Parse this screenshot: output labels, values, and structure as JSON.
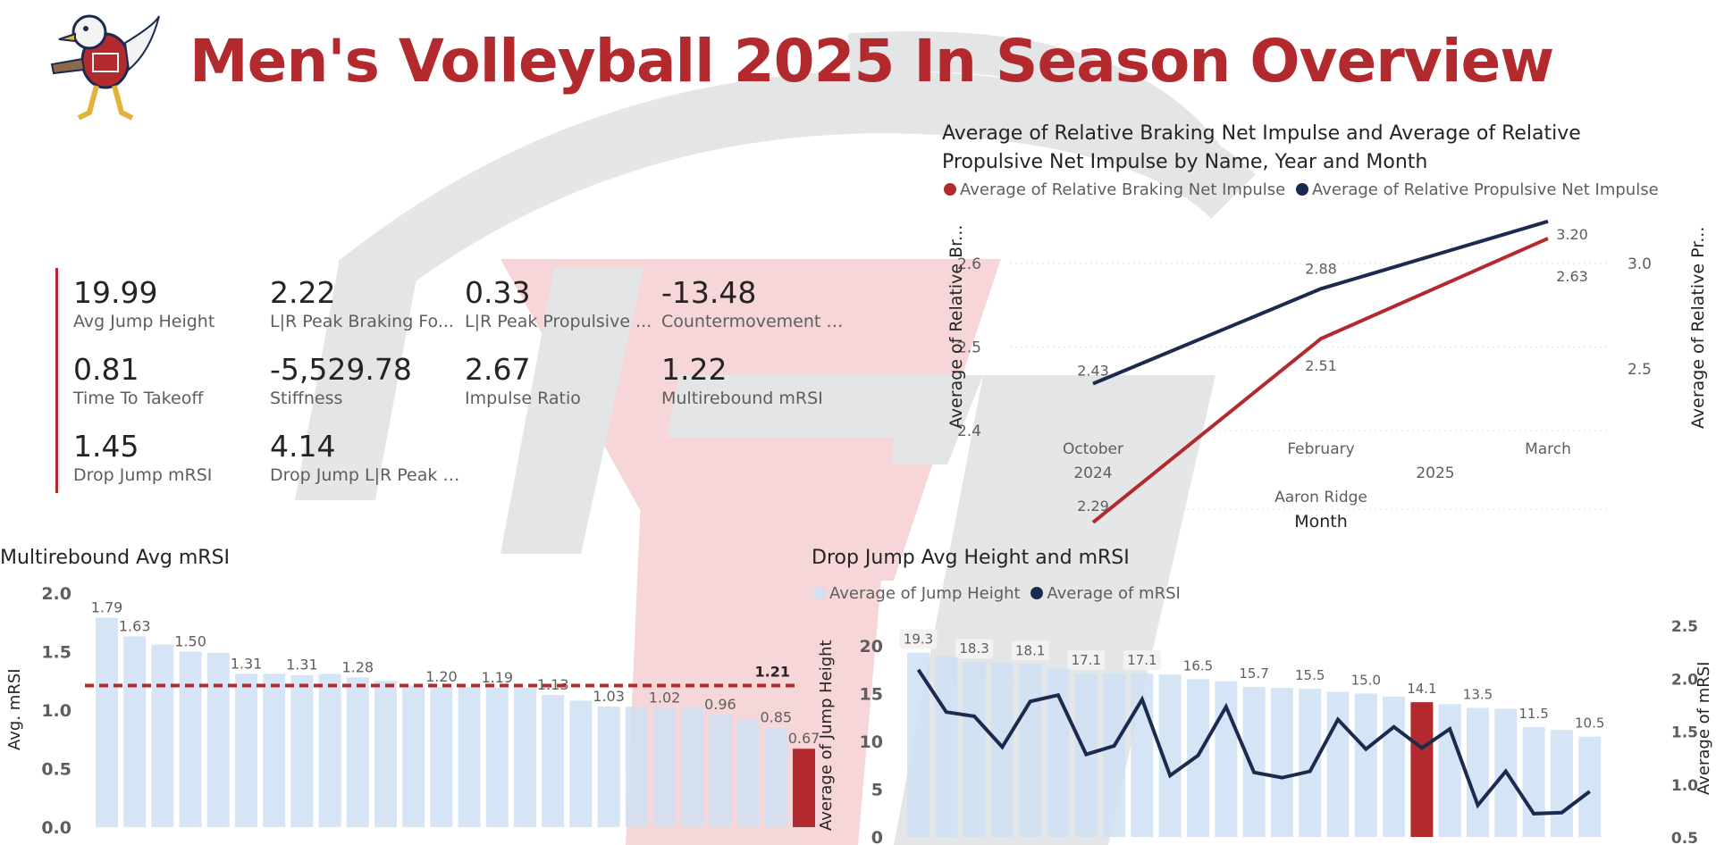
{
  "header": {
    "title": "Men's Volleyball 2025 In Season Overview"
  },
  "colors": {
    "brand_red": "#b22a2e",
    "navy": "#1b2a4e",
    "light_blue": "#cfe0f3",
    "text": "#252423",
    "subtle": "#605e5c"
  },
  "logo": {
    "icon": "eagle-mascot-icon"
  },
  "kpis": [
    {
      "value": "19.99",
      "label": "Avg Jump Height"
    },
    {
      "value": "2.22",
      "label": "L|R Peak Braking Fo..."
    },
    {
      "value": "0.33",
      "label": "L|R Peak Propulsive ..."
    },
    {
      "value": "-13.48",
      "label": "Countermovement De..."
    },
    {
      "value": "0.81",
      "label": "Time To Takeoff"
    },
    {
      "value": "-5,529.78",
      "label": "Stiffness"
    },
    {
      "value": "2.67",
      "label": "Impulse Ratio"
    },
    {
      "value": "1.22",
      "label": "Multirebound mRSI"
    },
    {
      "value": "1.45",
      "label": "Drop Jump mRSI"
    },
    {
      "value": "4.14",
      "label": "Drop Jump L|R Peak Br..."
    }
  ],
  "impulse_chart": {
    "title_line1": "Average of Relative Braking Net Impulse and Average of Relative",
    "title_line2": "Propulsive Net Impulse by Name, Year and Month",
    "legend": [
      "Average of Relative Braking Net Impulse",
      "Average of Relative Propulsive Net Impulse"
    ],
    "ylabel_left": "Average of Relative Br...",
    "ylabel_right": "Average of Relative Pr...",
    "xlabel": "Month",
    "left_ticks": [
      "2.4",
      "2.5",
      "2.6"
    ],
    "right_ticks": [
      "2.5",
      "3.0"
    ],
    "month_labels": [
      "October",
      "February",
      "March"
    ],
    "year_labels": [
      "2024",
      "2025"
    ],
    "name_label": "Aaron Ridge",
    "braking_labels": [
      "2.29",
      "2.51",
      "2.63"
    ],
    "propulsive_labels": [
      "2.43",
      "2.88",
      "3.20"
    ]
  },
  "mrsi_chart": {
    "title": "Multirebound Avg mRSI",
    "ylabel": "Avg. mRSI",
    "y_ticks": [
      "0.0",
      "0.5",
      "1.0",
      "1.5",
      "2.0"
    ],
    "bar_labels": [
      "1.79",
      "1.63",
      "1.50",
      "1.31",
      "1.31",
      "1.28",
      "1.20",
      "1.19",
      "1.13",
      "1.03",
      "1.02",
      "0.96",
      "0.85",
      "0.67"
    ],
    "average_label": "1.21"
  },
  "drop_chart": {
    "title": "Drop Jump Avg Height and mRSI",
    "legend": [
      "Average of Jump Height",
      "Average of mRSI"
    ],
    "ylabel_left": "Average of Jump Height",
    "ylabel_right": "Average of mRSI",
    "left_ticks": [
      "0",
      "5",
      "10",
      "15",
      "20"
    ],
    "right_ticks": [
      "0.5",
      "1.0",
      "1.5",
      "2.0",
      "2.5"
    ],
    "bar_labels": [
      "19.3",
      "18.3",
      "18.1",
      "17.1",
      "17.1",
      "16.5",
      "15.7",
      "15.5",
      "15.0",
      "14.1",
      "13.5",
      "11.5",
      "10.5"
    ]
  },
  "chart_data": [
    {
      "type": "line",
      "title": "Average of Relative Braking Net Impulse and Average of Relative Propulsive Net Impulse by Name, Year and Month",
      "xlabel": "Month",
      "ylabel": "Average of Relative Br...",
      "y2label": "Average of Relative Pr...",
      "categories": [
        "October 2024",
        "February 2025",
        "March 2025"
      ],
      "ylim": [
        2.4,
        2.65
      ],
      "y2lim": [
        2.0,
        3.3
      ],
      "series": [
        {
          "name": "Average of Relative Braking Net Impulse",
          "axis": "left",
          "values": [
            2.29,
            2.51,
            2.63
          ]
        },
        {
          "name": "Average of Relative Propulsive Net Impulse",
          "axis": "right",
          "values": [
            2.43,
            2.88,
            3.2
          ]
        }
      ],
      "legend": "top"
    },
    {
      "type": "bar",
      "title": "Multirebound Avg mRSI",
      "ylabel": "Avg. mRSI",
      "ylim": [
        0,
        2.0
      ],
      "values": [
        1.79,
        1.63,
        1.56,
        1.5,
        1.49,
        1.31,
        1.31,
        1.3,
        1.31,
        1.28,
        1.25,
        1.21,
        1.2,
        1.2,
        1.19,
        1.19,
        1.13,
        1.08,
        1.03,
        1.03,
        1.02,
        1.02,
        0.96,
        0.92,
        0.85,
        0.67
      ],
      "highlight_index": 25,
      "reference_line": 1.21
    },
    {
      "type": "bar",
      "title": "Drop Jump Avg Height and mRSI",
      "ylabel": "Average of Jump Height",
      "y2label": "Average of mRSI",
      "ylim": [
        0,
        22
      ],
      "y2lim": [
        0.5,
        2.6
      ],
      "series": [
        {
          "name": "Average of Jump Height",
          "type": "bar",
          "values": [
            19.3,
            18.9,
            18.3,
            18.2,
            18.1,
            17.6,
            17.1,
            17.1,
            17.1,
            17.0,
            16.5,
            16.3,
            15.7,
            15.6,
            15.5,
            15.2,
            15.0,
            14.7,
            14.1,
            13.9,
            13.5,
            13.4,
            11.5,
            11.2,
            10.5
          ]
        },
        {
          "name": "Average of mRSI",
          "type": "line",
          "axis": "right",
          "values": [
            2.08,
            1.68,
            1.64,
            1.35,
            1.78,
            1.84,
            1.28,
            1.36,
            1.8,
            1.08,
            1.27,
            1.73,
            1.11,
            1.06,
            1.12,
            1.61,
            1.33,
            1.54,
            1.34,
            1.52,
            0.8,
            1.12,
            0.72,
            0.73,
            0.93
          ]
        }
      ],
      "highlight_index": 18
    }
  ]
}
